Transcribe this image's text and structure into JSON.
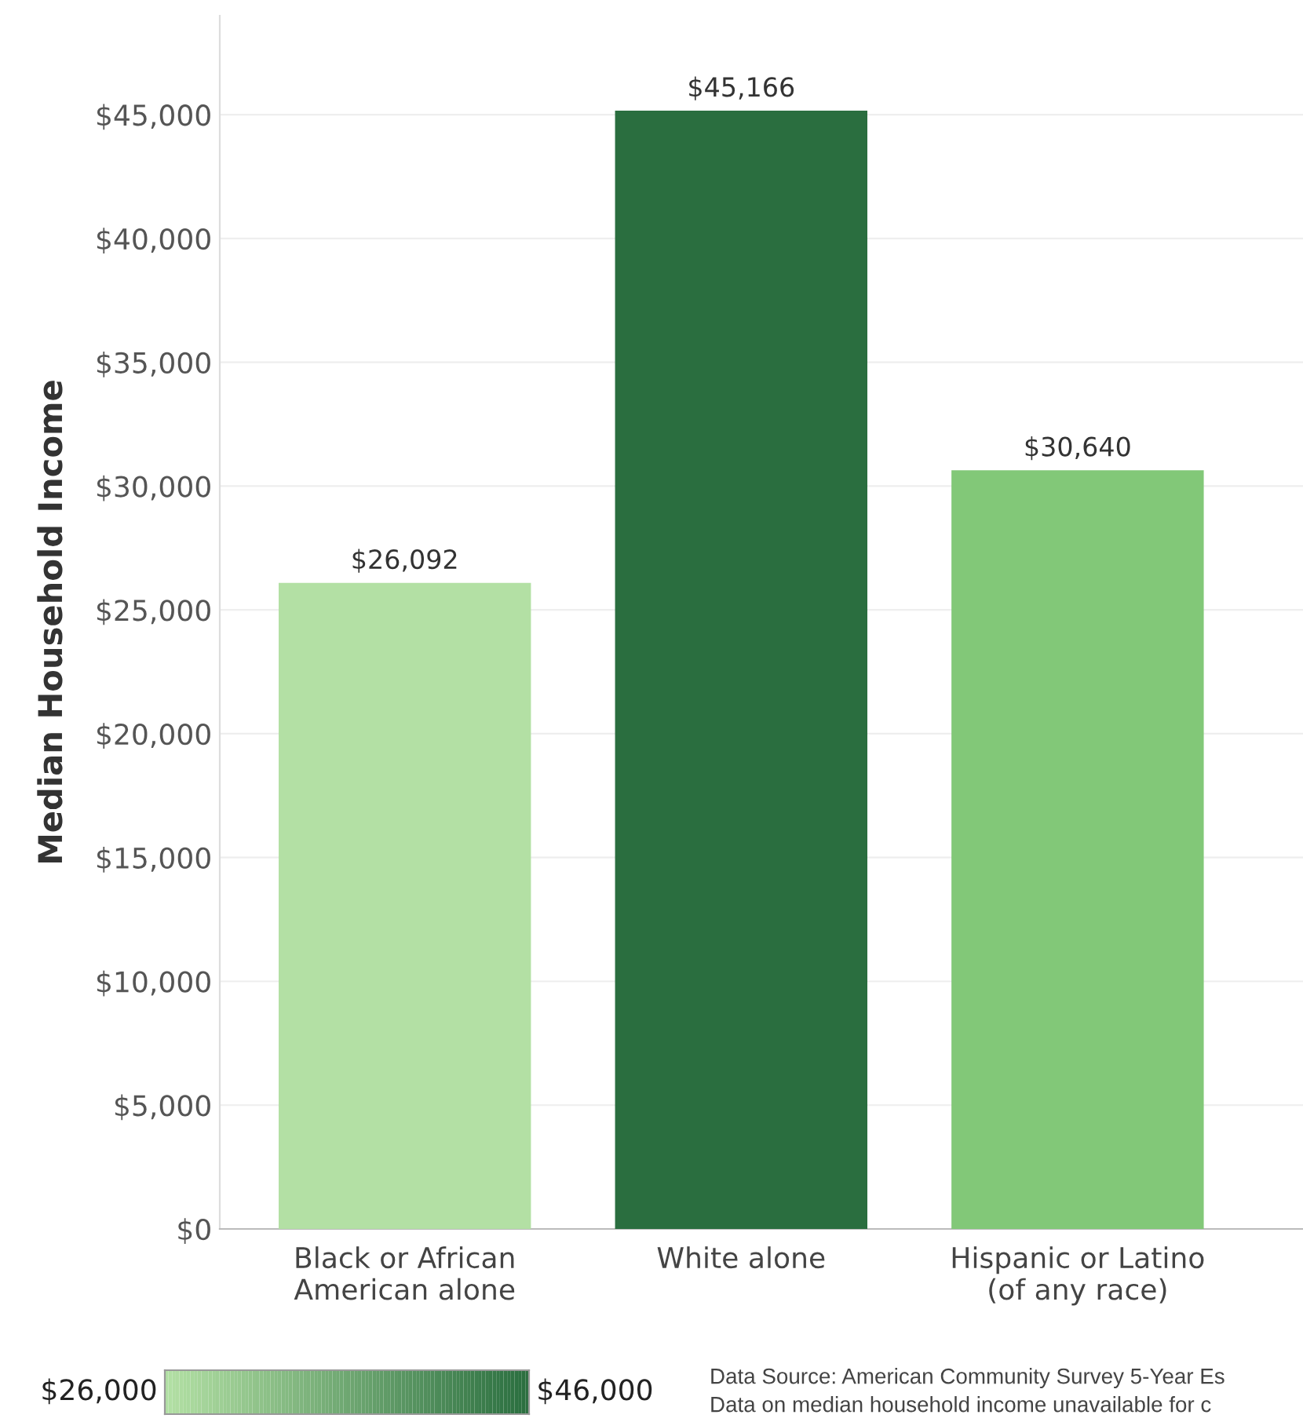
{
  "chart_data": {
    "type": "bar",
    "ylabel": "Median Household Income",
    "categories": [
      "Black or African\nAmerican alone",
      "White alone",
      "Hispanic or Latino\n(of any race)"
    ],
    "values": [
      26092,
      45166,
      30640
    ],
    "colors": [
      "#b3e0a4",
      "#2a6e3f",
      "#82c878"
    ],
    "value_labels": [
      "$26,092",
      "$45,166",
      "$30,640"
    ],
    "ylim": [
      0,
      49000
    ],
    "yticks": [
      {
        "value": 0,
        "label": "$0"
      },
      {
        "value": 5000,
        "label": "$5,000"
      },
      {
        "value": 10000,
        "label": "$10,000"
      },
      {
        "value": 15000,
        "label": "$15,000"
      },
      {
        "value": 20000,
        "label": "$20,000"
      },
      {
        "value": 25000,
        "label": "$25,000"
      },
      {
        "value": 30000,
        "label": "$30,000"
      },
      {
        "value": 35000,
        "label": "$35,000"
      },
      {
        "value": 40000,
        "label": "$40,000"
      },
      {
        "value": 45000,
        "label": "$45,000"
      }
    ],
    "grid": "y",
    "clim": [
      26000,
      46000
    ],
    "cticks": [
      {
        "value": 26000,
        "label": "$26,000"
      },
      {
        "value": 46000,
        "label": "$46,000"
      }
    ],
    "annotations": [
      "Data Source: American Community Survey 5-Year Es",
      "Data on median household income unavailable for c"
    ]
  }
}
